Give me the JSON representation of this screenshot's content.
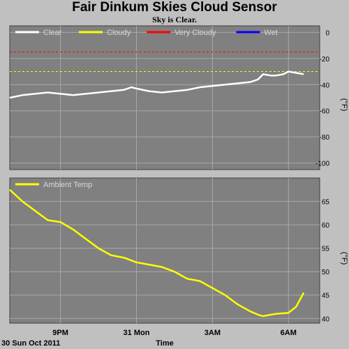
{
  "title": "Fair Dinkum Skies Cloud Sensor",
  "subtitle": "Sky is Clear.",
  "date_label": "30 Sun Oct 2011",
  "xlabel": "Time",
  "x_ticks": [
    "9PM",
    "31 Mon",
    "3AM",
    "6AM"
  ],
  "colors": {
    "panel_bg": "#808080",
    "frame": "#c0c0c0",
    "grid": "#a8a8a8",
    "clear": "#ffffff",
    "cloudy": "#ffff00",
    "very_cloudy": "#ff0000",
    "wet": "#0000ff"
  },
  "chart_data": [
    {
      "type": "line",
      "name": "sky-temperature",
      "ylabel": "(°F)",
      "ylim": [
        -105,
        5
      ],
      "yticks": [
        0,
        -20,
        -40,
        -60,
        -80,
        -100
      ],
      "grid": true,
      "legend_position": "top",
      "legend": [
        {
          "label": "Clear",
          "color": "#ffffff"
        },
        {
          "label": "Cloudy",
          "color": "#ffff00"
        },
        {
          "label": "Very Cloudy",
          "color": "#ff0000"
        },
        {
          "label": "Wet",
          "color": "#0000ff"
        }
      ],
      "thresholds": [
        {
          "label": "Very Cloudy",
          "value": -15,
          "color": "#ff0000"
        },
        {
          "label": "Cloudy",
          "value": -30,
          "color": "#ffff00"
        }
      ],
      "x_hours": [
        0,
        0.5,
        1,
        1.5,
        2,
        2.5,
        3,
        3.5,
        4,
        4.5,
        4.8,
        5,
        5.5,
        6,
        6.5,
        7,
        7.5,
        8,
        8.5,
        9,
        9.5,
        9.8,
        10,
        10.3,
        10.5,
        10.8,
        11,
        11.3,
        11.6
      ],
      "series": [
        {
          "name": "Clear",
          "color": "#ffffff",
          "values": [
            -50,
            -48,
            -47,
            -46,
            -47,
            -48,
            -47,
            -46,
            -45,
            -44,
            -42,
            -43,
            -45,
            -46,
            -45,
            -44,
            -42,
            -41,
            -40,
            -39,
            -38,
            -36,
            -32,
            -33,
            -33,
            -32,
            -30,
            -31,
            -32
          ]
        }
      ]
    },
    {
      "type": "line",
      "name": "ambient-temperature",
      "ylabel": "(°F)",
      "ylim": [
        39,
        70
      ],
      "yticks": [
        65,
        60,
        55,
        50,
        45,
        40
      ],
      "grid": true,
      "legend_position": "top-left",
      "legend": [
        {
          "label": "Ambient Temp",
          "color": "#ffff00"
        }
      ],
      "x_hours": [
        0,
        0.5,
        1,
        1.5,
        2,
        2.5,
        3,
        3.5,
        4,
        4.5,
        5,
        5.5,
        6,
        6.5,
        7,
        7.5,
        8,
        8.5,
        9,
        9.5,
        9.8,
        10,
        10.5,
        11,
        11.3,
        11.6
      ],
      "series": [
        {
          "name": "Ambient Temp",
          "color": "#ffff00",
          "values": [
            67.5,
            65,
            63,
            61,
            60.6,
            59,
            57,
            55,
            53.5,
            53,
            52,
            51.5,
            51,
            50,
            48.5,
            48,
            46.5,
            45,
            43,
            41.5,
            40.8,
            40.5,
            41,
            41.2,
            42.5,
            45.5
          ]
        }
      ]
    }
  ]
}
